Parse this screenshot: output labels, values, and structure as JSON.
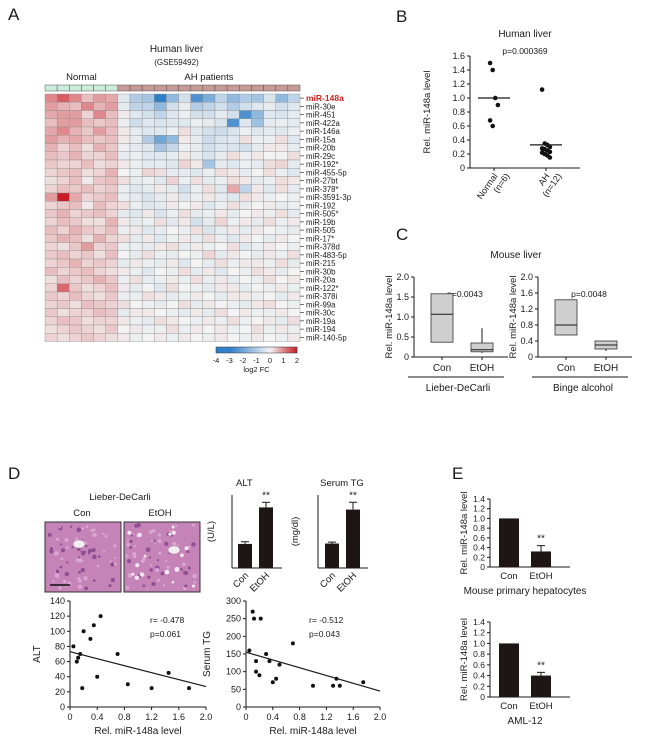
{
  "colors": {
    "heat_low": "#2f7fc8",
    "heat_mid": "#f3f3f3",
    "heat_high": "#c81d25",
    "highlight_text": "#d22323",
    "normal_bar": "#cdebdb",
    "ah_bar": "#c79a98",
    "box_fill": "#cfcfcf",
    "bar_fill": "#1e1616",
    "he_bg": "#c583b8"
  },
  "panel_labels": [
    "A",
    "B",
    "C",
    "D",
    "E"
  ],
  "chart_data": [
    {
      "panel": "A",
      "type": "heatmap",
      "title": "Human liver",
      "subtitle": "(GSE59492)",
      "groups": [
        {
          "name": "Normal",
          "count": 6
        },
        {
          "name": "AH patients",
          "count": 15
        }
      ],
      "rows": [
        "miR-148a",
        "miR-30e",
        "miR-451",
        "miR-422a",
        "miR-146a",
        "miR-15a",
        "miR-20b",
        "miR-29c",
        "miR-192*",
        "miR-455-5p",
        "miR-27bt",
        "miR-378*",
        "miR-3591-3p",
        "miR-192",
        "miR-505*",
        "miR-19b",
        "miR-505",
        "miR-17*",
        "miR-378d",
        "miR-483-5p",
        "miR-215",
        "miR-30b",
        "miR-20a",
        "miR-122*",
        "miR-378i",
        "miR-99a",
        "miR-30c",
        "miR-19a",
        "miR-194",
        "miR-140-5p"
      ],
      "highlighted_row": "miR-148a",
      "values": [
        [
          1.0,
          1.4,
          1.0,
          0.5,
          0.8,
          0.7,
          -0.3,
          -1.0,
          -1.2,
          -3.0,
          -1.5,
          -0.5,
          -2.5,
          -1.8,
          -0.8,
          -1.5,
          -1.0,
          -1.2,
          -0.4,
          -1.5,
          -0.8
        ],
        [
          0.8,
          0.6,
          0.5,
          1.0,
          0.6,
          0.8,
          -0.2,
          -0.8,
          -0.8,
          -1.5,
          -0.5,
          -0.2,
          -1.0,
          -0.8,
          -0.5,
          -1.0,
          -0.5,
          -0.3,
          -0.2,
          -0.5,
          -0.3
        ],
        [
          0.7,
          0.8,
          0.8,
          0.3,
          1.0,
          0.5,
          0.1,
          -0.3,
          -0.5,
          -0.8,
          -0.3,
          -0.1,
          -0.5,
          -0.5,
          -0.2,
          -0.5,
          -2.5,
          -1.5,
          -0.3,
          -0.4,
          -0.2
        ],
        [
          0.5,
          0.8,
          0.8,
          0.5,
          0.4,
          0.5,
          -0.1,
          -0.6,
          -0.3,
          -0.4,
          -0.3,
          -0.3,
          -0.1,
          -0.2,
          -0.4,
          -2.5,
          -0.3,
          -1.3,
          -0.2,
          -0.1,
          -0.2
        ],
        [
          0.7,
          1.0,
          0.6,
          0.4,
          0.8,
          0.5,
          0.1,
          -0.2,
          -0.3,
          -0.3,
          -0.1,
          0.2,
          -0.3,
          -0.5,
          -0.6,
          -0.4,
          -0.1,
          -0.3,
          -0.2,
          -0.3,
          -0.1
        ],
        [
          0.8,
          0.6,
          0.7,
          0.5,
          0.4,
          0.5,
          0.1,
          -0.2,
          -1.0,
          -2.0,
          -1.5,
          0.1,
          -0.2,
          -0.6,
          -0.4,
          -0.3,
          0.2,
          -0.1,
          -0.1,
          0.2,
          -0.3
        ],
        [
          0.6,
          0.3,
          0.5,
          0.2,
          0.6,
          0.4,
          -0.1,
          -0.2,
          -0.3,
          -1.2,
          -0.7,
          -0.1,
          -0.2,
          -0.5,
          -0.3,
          -0.4,
          -0.5,
          -0.2,
          0.1,
          0.1,
          -0.2
        ],
        [
          0.5,
          0.4,
          0.6,
          0.3,
          0.3,
          0.5,
          -0.2,
          -0.1,
          -0.3,
          -0.3,
          -0.2,
          0.1,
          -0.2,
          -0.4,
          -0.2,
          0.2,
          -0.1,
          0.1,
          0.0,
          0.0,
          0.2
        ],
        [
          0.4,
          0.3,
          0.3,
          0.5,
          0.2,
          0.3,
          0.1,
          -0.1,
          -0.2,
          -0.2,
          -0.3,
          0.3,
          0.1,
          -1.2,
          -0.2,
          -0.3,
          -0.1,
          -0.2,
          0.2,
          0.3,
          -0.2
        ],
        [
          0.3,
          0.4,
          0.5,
          0.2,
          0.3,
          0.6,
          0.0,
          -0.1,
          0.3,
          0.2,
          -0.2,
          -0.2,
          -0.3,
          -0.1,
          0.2,
          0.1,
          -0.2,
          0.0,
          0.2,
          -0.1,
          -0.3
        ],
        [
          0.2,
          0.3,
          0.5,
          0.1,
          0.4,
          0.5,
          0.2,
          -0.2,
          -0.1,
          -0.3,
          0.3,
          -0.1,
          0.2,
          -0.2,
          -0.1,
          0.2,
          0.1,
          -0.2,
          -0.1,
          0.2,
          0.1
        ],
        [
          0.3,
          0.5,
          0.4,
          0.5,
          0.3,
          0.4,
          -0.1,
          -0.3,
          -0.2,
          0.1,
          -0.2,
          -0.5,
          -0.1,
          0.2,
          -0.3,
          0.7,
          -0.8,
          0.1,
          -0.3,
          0.2,
          -0.2
        ],
        [
          0.8,
          2.0,
          0.7,
          0.3,
          0.4,
          0.5,
          -0.1,
          -0.2,
          -0.4,
          -0.2,
          0.1,
          -0.3,
          -0.1,
          0.1,
          -0.2,
          -0.3,
          0.2,
          0.1,
          -0.1,
          0.0,
          -0.1
        ],
        [
          0.3,
          0.4,
          0.5,
          0.1,
          0.5,
          0.3,
          0.2,
          -0.1,
          -0.3,
          -0.2,
          0.1,
          0.0,
          0.1,
          -0.3,
          -0.1,
          0.2,
          -0.2,
          0.0,
          0.1,
          -0.2,
          -0.1
        ],
        [
          0.4,
          0.6,
          0.3,
          0.4,
          0.5,
          0.3,
          -0.2,
          -0.3,
          0.1,
          -0.4,
          -0.1,
          0.2,
          -0.2,
          -0.1,
          0.1,
          -0.2,
          0.0,
          0.1,
          -0.1,
          0.2,
          -0.2
        ],
        [
          0.3,
          0.5,
          0.4,
          0.2,
          0.2,
          0.6,
          0.1,
          -0.2,
          -0.1,
          0.2,
          -0.3,
          0.1,
          -0.5,
          -0.2,
          0.3,
          -0.1,
          0.1,
          -0.2,
          0.2,
          -0.1,
          0.1
        ],
        [
          0.5,
          0.3,
          0.6,
          0.4,
          0.3,
          0.5,
          -0.1,
          0.1,
          -0.3,
          -0.2,
          0.0,
          -0.1,
          0.2,
          -0.4,
          -0.2,
          0.1,
          -0.2,
          0.1,
          0.0,
          -0.1,
          -0.2
        ],
        [
          0.4,
          0.6,
          0.5,
          0.2,
          0.6,
          0.3,
          0.2,
          -0.2,
          0.1,
          -0.3,
          -0.1,
          0.1,
          -0.2,
          0.2,
          -0.1,
          -0.3,
          0.1,
          0.0,
          -0.2,
          0.1,
          0.0
        ],
        [
          0.3,
          0.2,
          0.4,
          0.8,
          0.3,
          0.4,
          -0.1,
          -0.1,
          -0.2,
          0.1,
          0.2,
          -0.2,
          0.1,
          -0.1,
          0.0,
          0.2,
          -0.3,
          -0.1,
          0.1,
          0.0,
          -0.1
        ],
        [
          0.4,
          0.5,
          0.3,
          0.4,
          0.2,
          0.5,
          0.0,
          -0.2,
          0.2,
          -0.1,
          -0.2,
          0.0,
          -0.1,
          0.3,
          -0.2,
          0.1,
          0.0,
          -0.2,
          0.1,
          -0.1,
          0.2
        ],
        [
          0.3,
          0.4,
          0.6,
          0.3,
          0.4,
          0.3,
          -0.2,
          0.1,
          -0.1,
          -0.2,
          0.1,
          -0.3,
          0.0,
          -0.2,
          0.2,
          -0.1,
          0.1,
          0.1,
          -0.1,
          0.2,
          -0.2
        ],
        [
          0.5,
          0.3,
          0.4,
          0.5,
          0.3,
          0.2,
          0.1,
          -0.1,
          -0.3,
          0.0,
          -0.1,
          0.2,
          -0.2,
          0.1,
          -0.3,
          0.0,
          -0.1,
          0.2,
          0.1,
          -0.2,
          0.0
        ],
        [
          0.2,
          0.5,
          0.3,
          0.4,
          0.6,
          0.4,
          -0.1,
          0.2,
          -0.2,
          -0.1,
          0.1,
          -0.1,
          0.2,
          -0.1,
          0.1,
          -0.2,
          0.0,
          -0.1,
          0.2,
          0.0,
          0.1
        ],
        [
          0.3,
          1.3,
          0.4,
          0.2,
          0.3,
          0.5,
          0.1,
          -0.2,
          0.0,
          -0.3,
          0.2,
          0.0,
          -0.1,
          -0.2,
          0.1,
          0.1,
          -0.2,
          0.0,
          -0.1,
          0.1,
          -0.1
        ],
        [
          0.4,
          0.3,
          0.5,
          0.3,
          0.2,
          0.4,
          -0.1,
          -0.1,
          0.2,
          0.1,
          -0.2,
          -0.1,
          0.1,
          0.0,
          -0.2,
          0.1,
          0.1,
          -0.1,
          0.0,
          -0.2,
          0.1
        ],
        [
          0.3,
          0.4,
          0.2,
          0.5,
          0.4,
          0.3,
          0.2,
          0.0,
          -0.1,
          -0.2,
          0.0,
          0.2,
          -0.2,
          0.1,
          0.0,
          -0.1,
          -0.2,
          0.1,
          0.2,
          0.0,
          -0.1
        ],
        [
          0.4,
          0.2,
          0.3,
          0.3,
          0.5,
          0.4,
          -0.2,
          0.1,
          0.1,
          0.0,
          -0.1,
          -0.2,
          0.1,
          -0.2,
          0.2,
          0.0,
          0.1,
          -0.1,
          -0.1,
          0.1,
          0.0
        ],
        [
          0.3,
          0.5,
          0.4,
          0.2,
          0.3,
          0.3,
          0.1,
          -0.1,
          -0.2,
          0.2,
          0.1,
          0.0,
          -0.1,
          0.1,
          -0.1,
          0.2,
          -0.1,
          0.0,
          0.1,
          -0.2,
          0.2
        ],
        [
          0.2,
          0.3,
          0.4,
          0.3,
          0.2,
          0.4,
          0.0,
          0.1,
          -0.1,
          -0.1,
          0.2,
          -0.1,
          0.1,
          0.0,
          0.1,
          -0.1,
          0.0,
          0.2,
          -0.1,
          0.1,
          -0.1
        ],
        [
          0.3,
          0.2,
          0.3,
          0.4,
          0.3,
          0.2,
          0.1,
          -0.1,
          0.0,
          0.1,
          -0.1,
          0.1,
          0.0,
          -0.1,
          0.1,
          0.0,
          -0.1,
          0.1,
          0.0,
          -0.1,
          0.1
        ]
      ],
      "colorbar": {
        "ticks": [
          "-4",
          "-3",
          "-2",
          "-1",
          "0",
          "1",
          "2"
        ],
        "min": -4,
        "max": 2,
        "label": "log2 FC"
      }
    },
    {
      "panel": "B",
      "type": "scatter",
      "title": "Human liver",
      "annotation": "p=0.000369",
      "ylabel": "Rel. miR-148a level",
      "ylim": [
        0,
        1.6
      ],
      "yticks": [
        "0",
        "0.2",
        "0.4",
        "0.6",
        "0.8",
        "1.0",
        "1.2",
        "1.4",
        "1.6"
      ],
      "categories": [
        "Normal\n(n=6)",
        "AH\n(n=12)"
      ],
      "points": [
        [
          1.5,
          1.4,
          1.0,
          0.9,
          0.68,
          0.6
        ],
        [
          1.12,
          0.35,
          0.33,
          0.3,
          0.28,
          0.27,
          0.25,
          0.23,
          0.22,
          0.2,
          0.18,
          0.15
        ]
      ],
      "means": [
        1.0,
        0.33
      ]
    },
    {
      "panel": "C",
      "type": "box",
      "title": "Mouse liver",
      "ylabel": "Rel. miR-148a level",
      "subplots": [
        {
          "xlabel": "Lieber-DeCarli",
          "annotation": "p=0.0043",
          "ylim": [
            0,
            2.0
          ],
          "yticks": [
            "0",
            "0.5",
            "1.0",
            "1.5",
            "2.0"
          ],
          "categories": [
            "Con",
            "EtOH"
          ],
          "boxes": [
            {
              "min": 0.37,
              "q1": 0.37,
              "median": 1.07,
              "q3": 1.58,
              "max": 1.58
            },
            {
              "min": 0.1,
              "q1": 0.13,
              "median": 0.18,
              "q3": 0.35,
              "max": 0.72
            }
          ]
        },
        {
          "xlabel": "Binge alcohol",
          "annotation": "p=0.0048",
          "ylim": [
            0,
            2.0
          ],
          "yticks": [
            "0",
            "0.4",
            "0.8",
            "1.2",
            "1.6",
            "2.0"
          ],
          "categories": [
            "Con",
            "EtOH"
          ],
          "boxes": [
            {
              "min": 0.55,
              "q1": 0.55,
              "median": 0.8,
              "q3": 1.43,
              "max": 1.43
            },
            {
              "min": 0.15,
              "q1": 0.2,
              "median": 0.3,
              "q3": 0.4,
              "max": 0.4
            }
          ]
        }
      ]
    },
    {
      "panel": "D-images",
      "type": "image",
      "title": "Lieber-DeCarli",
      "labels": [
        "Con",
        "EtOH"
      ]
    },
    {
      "panel": "D-ALT",
      "type": "bar",
      "title": "ALT",
      "ylabel": "(U/L)",
      "ylim": [
        0,
        100
      ],
      "categories": [
        "Con",
        "EtOH"
      ],
      "values": [
        33,
        83
      ],
      "errors": [
        3,
        7
      ],
      "significance": [
        "",
        "**"
      ]
    },
    {
      "panel": "D-TG",
      "type": "bar",
      "title": "Serum TG",
      "ylabel": "(mg/dl)",
      "ylim": [
        0,
        200
      ],
      "categories": [
        "Con",
        "EtOH"
      ],
      "values": [
        67,
        160
      ],
      "errors": [
        4,
        20
      ],
      "significance": [
        "",
        "**"
      ]
    },
    {
      "panel": "D-scatter-ALT",
      "type": "scatter",
      "xlabel": "Rel. miR-148a level",
      "ylabel": "ALT",
      "xlim": [
        0,
        2.0
      ],
      "ylim": [
        0,
        140
      ],
      "xticks": [
        "0",
        "0.4",
        "0.8",
        "1.2",
        "1.6",
        "2.0"
      ],
      "yticks": [
        "0",
        "20",
        "40",
        "60",
        "80",
        "100",
        "120",
        "140"
      ],
      "annotations": [
        "r= -0.478",
        "p=0.061"
      ],
      "x": [
        0.05,
        0.1,
        0.12,
        0.15,
        0.18,
        0.2,
        0.3,
        0.35,
        0.4,
        0.45,
        0.7,
        0.85,
        1.2,
        1.45,
        1.75
      ],
      "y": [
        80,
        60,
        65,
        70,
        25,
        100,
        90,
        108,
        40,
        120,
        70,
        30,
        25,
        45,
        25
      ],
      "fit": {
        "slope": -23,
        "intercept": 73
      }
    },
    {
      "panel": "D-scatter-TG",
      "type": "scatter",
      "xlabel": "Rel. miR-148a level",
      "ylabel": "Serum TG",
      "xlim": [
        0,
        2.0
      ],
      "ylim": [
        0,
        300
      ],
      "xticks": [
        "0",
        "0.4",
        "0.8",
        "1.2",
        "1.6",
        "2.0"
      ],
      "yticks": [
        "0",
        "50",
        "100",
        "150",
        "200",
        "250",
        "300"
      ],
      "annotations": [
        "r= -0.512",
        "p=0.043"
      ],
      "x": [
        0.05,
        0.1,
        0.12,
        0.15,
        0.15,
        0.2,
        0.22,
        0.3,
        0.35,
        0.4,
        0.45,
        0.5,
        0.7,
        1.0,
        1.3,
        1.35,
        1.4,
        1.75
      ],
      "y": [
        160,
        270,
        250,
        100,
        130,
        90,
        250,
        150,
        130,
        70,
        80,
        120,
        180,
        60,
        60,
        80,
        60,
        70
      ],
      "fit": {
        "slope": -55,
        "intercept": 155
      }
    },
    {
      "panel": "E-hep",
      "type": "bar",
      "xlabel": "Mouse primary hepatocytes",
      "ylabel": "Rel. miR-148a level",
      "ylim": [
        0,
        1.4
      ],
      "yticks": [
        "0",
        "0.2",
        "0.4",
        "0.6",
        "0.8",
        "1.0",
        "1.2",
        "1.4"
      ],
      "categories": [
        "Con",
        "EtOH"
      ],
      "values": [
        1.0,
        0.32
      ],
      "errors": [
        0,
        0.12
      ],
      "significance": [
        "",
        "**"
      ]
    },
    {
      "panel": "E-aml",
      "type": "bar",
      "xlabel": "AML-12",
      "ylabel": "Rel. miR-148a level",
      "ylim": [
        0,
        1.4
      ],
      "yticks": [
        "0",
        "0.2",
        "0.4",
        "0.6",
        "0.8",
        "1.0",
        "1.2",
        "1.4"
      ],
      "categories": [
        "Con",
        "EtOH"
      ],
      "values": [
        1.0,
        0.4
      ],
      "errors": [
        0,
        0.06
      ],
      "significance": [
        "",
        "**"
      ]
    }
  ]
}
